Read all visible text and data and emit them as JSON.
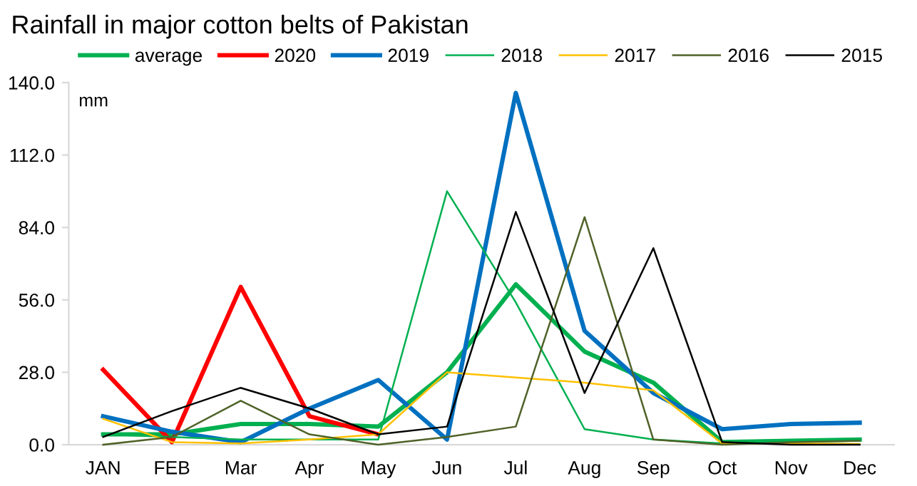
{
  "chart_data": {
    "type": "line",
    "title": "Rainfall in major cotton belts of Pakistan",
    "annotations": [
      "mm"
    ],
    "categories": [
      "JAN",
      "FEB",
      "Mar",
      "Apr",
      "May",
      "Jun",
      "Jul",
      "Aug",
      "Sep",
      "Oct",
      "Nov",
      "Dec"
    ],
    "series": [
      {
        "name": "average",
        "color": "#00b050",
        "values": [
          4,
          4,
          8,
          8,
          7,
          28,
          62,
          36,
          24,
          1,
          1.5,
          2
        ]
      },
      {
        "name": "2020",
        "color": "#ff0000",
        "values": [
          29,
          1,
          61,
          11,
          4,
          null,
          null,
          null,
          null,
          null,
          null,
          null
        ]
      },
      {
        "name": "2019",
        "color": "#0070c0",
        "values": [
          11,
          5,
          1,
          14,
          25,
          2,
          136,
          44,
          20,
          6,
          8,
          8.5
        ]
      },
      {
        "name": "2018",
        "color": "#00b050",
        "values": [
          4,
          3,
          2,
          2,
          2,
          98,
          55,
          6,
          2,
          0.5,
          1,
          2
        ]
      },
      {
        "name": "2017",
        "color": "#ffc000",
        "values": [
          10,
          1,
          0.5,
          2,
          4,
          28,
          26,
          24,
          21,
          0.5,
          0.5,
          0.3
        ]
      },
      {
        "name": "2016",
        "color": "#4f6228",
        "values": [
          0,
          3,
          17,
          4,
          0,
          3,
          7,
          88,
          2,
          0,
          1,
          1.5
        ]
      },
      {
        "name": "2015",
        "color": "#000000",
        "values": [
          3,
          13,
          22,
          14,
          4,
          7,
          90,
          20,
          76,
          1,
          0,
          0
        ]
      }
    ],
    "ylim": [
      0,
      140
    ],
    "yticks": [
      {
        "value": 0,
        "label": "0.0"
      },
      {
        "value": 28,
        "label": "28.0"
      },
      {
        "value": 56,
        "label": "56.0"
      },
      {
        "value": 84,
        "label": "84.0"
      },
      {
        "value": 112,
        "label": "112.0"
      },
      {
        "value": 140,
        "label": "140.0"
      }
    ],
    "grid": false,
    "legend": "top",
    "marker": "none",
    "line_style": "solid"
  }
}
